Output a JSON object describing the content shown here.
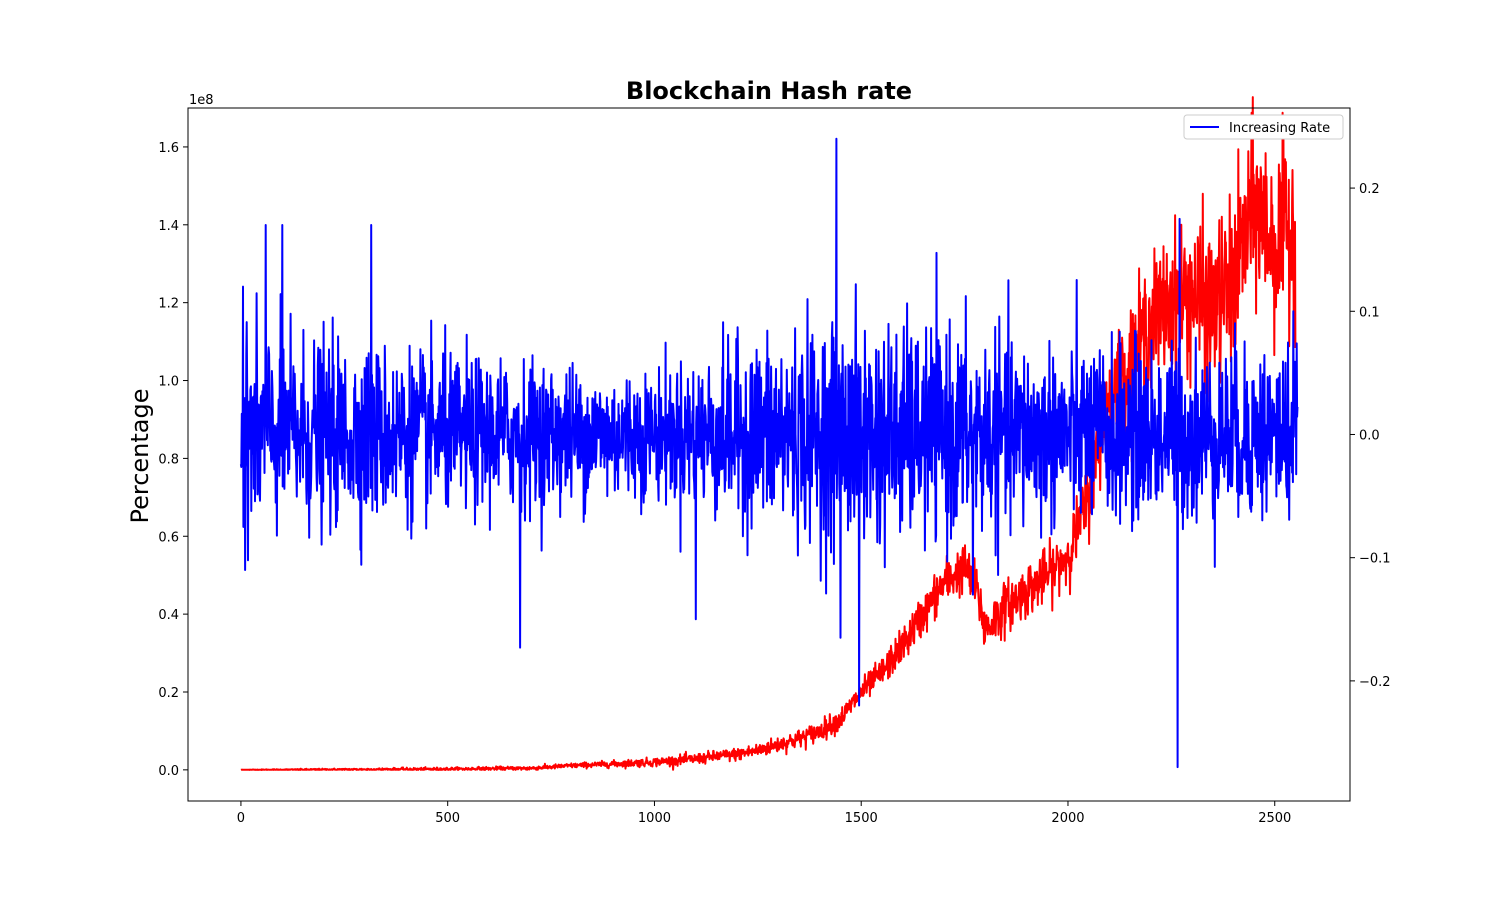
{
  "chart_data": {
    "type": "line",
    "title": "Blockchain Hash rate",
    "ylabel": "Percentage",
    "xlabel": "",
    "xlim": [
      -128,
      2682
    ],
    "xticks": [
      0,
      500,
      1000,
      1500,
      2000,
      2500
    ],
    "y_left": {
      "lim": [
        -0.08,
        1.7
      ],
      "ticks": [
        0.0,
        0.2,
        0.4,
        0.6,
        0.8,
        1.0,
        1.2,
        1.4,
        1.6
      ],
      "tick_labels": [
        "0.0",
        "0.2",
        "0.4",
        "0.6",
        "0.8",
        "1.0",
        "1.2",
        "1.4",
        "1.6"
      ],
      "offset_label": "1e8"
    },
    "y_right": {
      "lim": [
        -0.2975,
        0.265
      ],
      "ticks": [
        -0.2,
        -0.1,
        0.0,
        0.1,
        0.2
      ],
      "tick_labels": [
        "−0.2",
        "−0.1",
        "0.0",
        "0.1",
        "0.2"
      ]
    },
    "legend": {
      "placement": "top-right",
      "entries": [
        "Increasing Rate"
      ]
    },
    "grid": false,
    "series": [
      {
        "name": "",
        "axis": "left",
        "color": "#ff0000",
        "approx_points": [
          [
            0,
            0.0
          ],
          [
            250,
            0.001
          ],
          [
            500,
            0.002
          ],
          [
            700,
            0.004
          ],
          [
            800,
            0.011
          ],
          [
            900,
            0.015
          ],
          [
            1000,
            0.02
          ],
          [
            1100,
            0.028
          ],
          [
            1150,
            0.035
          ],
          [
            1200,
            0.04
          ],
          [
            1250,
            0.05
          ],
          [
            1300,
            0.065
          ],
          [
            1350,
            0.08
          ],
          [
            1400,
            0.1
          ],
          [
            1450,
            0.13
          ],
          [
            1500,
            0.2
          ],
          [
            1550,
            0.25
          ],
          [
            1600,
            0.32
          ],
          [
            1650,
            0.4
          ],
          [
            1700,
            0.48
          ],
          [
            1750,
            0.52
          ],
          [
            1780,
            0.46
          ],
          [
            1800,
            0.36
          ],
          [
            1850,
            0.42
          ],
          [
            1900,
            0.46
          ],
          [
            1950,
            0.5
          ],
          [
            2000,
            0.55
          ],
          [
            2050,
            0.7
          ],
          [
            2100,
            0.95
          ],
          [
            2150,
            1.05
          ],
          [
            2200,
            1.15
          ],
          [
            2250,
            1.2
          ],
          [
            2300,
            1.22
          ],
          [
            2350,
            1.18
          ],
          [
            2400,
            1.25
          ],
          [
            2450,
            1.45
          ],
          [
            2500,
            1.35
          ],
          [
            2550,
            1.4
          ]
        ],
        "noise_profile": [
          [
            0,
            0.0005
          ],
          [
            800,
            0.003
          ],
          [
            1200,
            0.008
          ],
          [
            1500,
            0.015
          ],
          [
            1700,
            0.03
          ],
          [
            2000,
            0.035
          ],
          [
            2100,
            0.06
          ],
          [
            2300,
            0.1
          ],
          [
            2550,
            0.12
          ]
        ]
      },
      {
        "name": "Increasing Rate",
        "axis": "right",
        "color": "#0000ff",
        "approx_points": [
          [
            0,
            0.0
          ],
          [
            2555,
            0.0
          ]
        ],
        "noise_profile": [
          [
            0,
            0.04
          ],
          [
            600,
            0.03
          ],
          [
            1000,
            0.025
          ],
          [
            1300,
            0.04
          ],
          [
            1500,
            0.045
          ],
          [
            2000,
            0.035
          ],
          [
            2555,
            0.035
          ]
        ],
        "notable_points": [
          [
            5,
            0.12
          ],
          [
            10,
            -0.11
          ],
          [
            60,
            0.17
          ],
          [
            100,
            0.17
          ],
          [
            315,
            0.17
          ],
          [
            675,
            -0.173
          ],
          [
            1100,
            -0.15
          ],
          [
            1440,
            0.24
          ],
          [
            1450,
            -0.165
          ],
          [
            1495,
            -0.22
          ],
          [
            1770,
            -0.13
          ],
          [
            2265,
            -0.27
          ],
          [
            2270,
            0.175
          ],
          [
            2545,
            0.1
          ]
        ]
      }
    ]
  }
}
